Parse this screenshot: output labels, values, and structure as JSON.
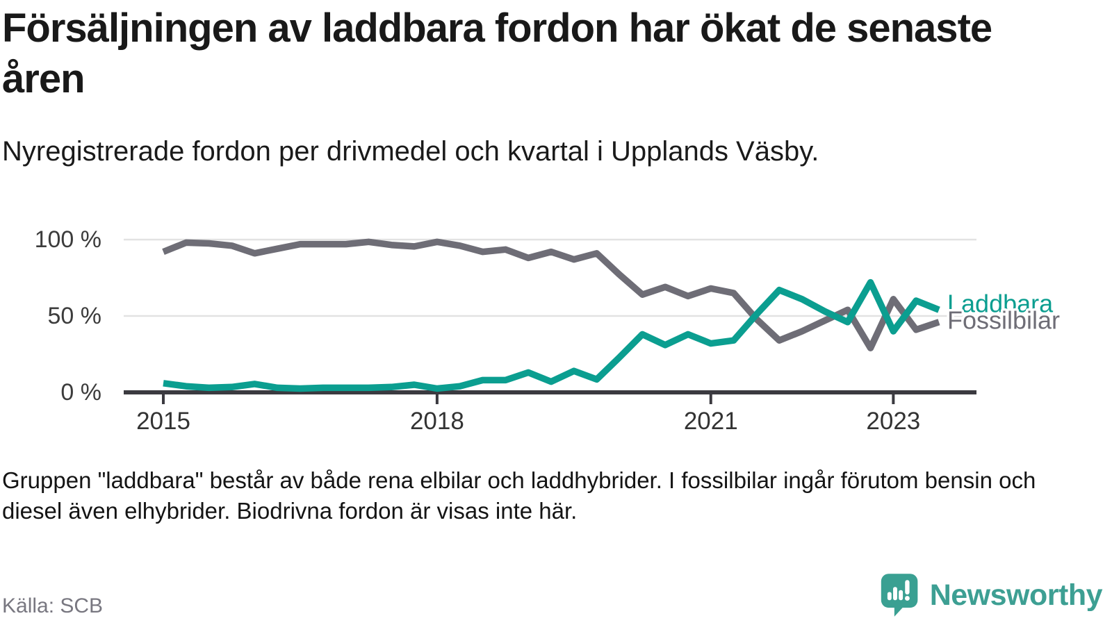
{
  "header": {
    "title": "Försäljningen av laddbara fordon har ökat de senaste åren",
    "subtitle": "Nyregistrerade fordon per drivmedel och kvartal i Upplands Väsby."
  },
  "chart_data": {
    "type": "line",
    "title": "Nyregistrerade fordon per drivmedel och kvartal i Upplands Väsby",
    "x_unit": "quarter",
    "x": [
      "2015-Q1",
      "2015-Q2",
      "2015-Q3",
      "2015-Q4",
      "2016-Q1",
      "2016-Q2",
      "2016-Q3",
      "2016-Q4",
      "2017-Q1",
      "2017-Q2",
      "2017-Q3",
      "2017-Q4",
      "2018-Q1",
      "2018-Q2",
      "2018-Q3",
      "2018-Q4",
      "2019-Q1",
      "2019-Q2",
      "2019-Q3",
      "2019-Q4",
      "2020-Q1",
      "2020-Q2",
      "2020-Q3",
      "2020-Q4",
      "2021-Q1",
      "2021-Q2",
      "2021-Q3",
      "2021-Q4",
      "2022-Q1",
      "2022-Q2",
      "2022-Q3",
      "2022-Q4",
      "2023-Q1",
      "2023-Q2",
      "2023-Q3"
    ],
    "series": [
      {
        "name": "Fossilbilar",
        "color": "#6e6d76",
        "values": [
          92,
          98,
          97.5,
          96,
          91,
          94,
          97,
          97,
          97,
          98.5,
          96.5,
          95.5,
          98.5,
          96,
          92,
          93.5,
          88,
          92,
          87,
          91,
          77,
          64,
          69,
          63,
          68,
          65,
          48,
          34,
          40,
          47,
          54,
          29,
          61,
          41,
          46
        ]
      },
      {
        "name": "Laddbara",
        "color": "#0b9e90",
        "values": [
          6,
          4,
          3,
          3.5,
          5.5,
          3,
          2.5,
          3,
          3,
          3,
          3.5,
          5,
          2.5,
          4,
          8,
          8,
          13,
          7,
          14,
          8.5,
          23,
          38,
          31,
          38,
          32,
          34,
          51,
          67,
          61,
          53,
          46,
          72,
          40,
          60,
          54
        ]
      }
    ],
    "ylim": [
      0,
      100
    ],
    "y_ticks": [
      {
        "label": "0 %",
        "value": 0
      },
      {
        "label": "50 %",
        "value": 50
      },
      {
        "label": "100 %",
        "value": 100
      }
    ],
    "x_ticks": [
      {
        "label": "2015",
        "index": 0
      },
      {
        "label": "2018",
        "index": 12
      },
      {
        "label": "2021",
        "index": 24
      },
      {
        "label": "2023",
        "index": 32
      }
    ],
    "grid": "horizontal gridlines at 50% and 100%, dark baseline at 0%",
    "legend_position": "labels at right end of lines",
    "colors": {
      "gridline": "#e2e2e2",
      "axis": "#3b3a40",
      "tick_label": "#333333",
      "y_label": "#3c3c3c"
    }
  },
  "footnote": {
    "text": "Gruppen \"laddbara\" består av både rena elbilar och laddhybrider. I fossilbilar ingår förutom bensin och diesel även elhybrider. Biodrivna fordon är visas inte här."
  },
  "source": {
    "label": "Källa: SCB"
  },
  "branding": {
    "logo_text": "Newsworthy",
    "logo_color": "#3d9f93",
    "logo_icon": "speech-bubble-bar-chart-icon"
  }
}
